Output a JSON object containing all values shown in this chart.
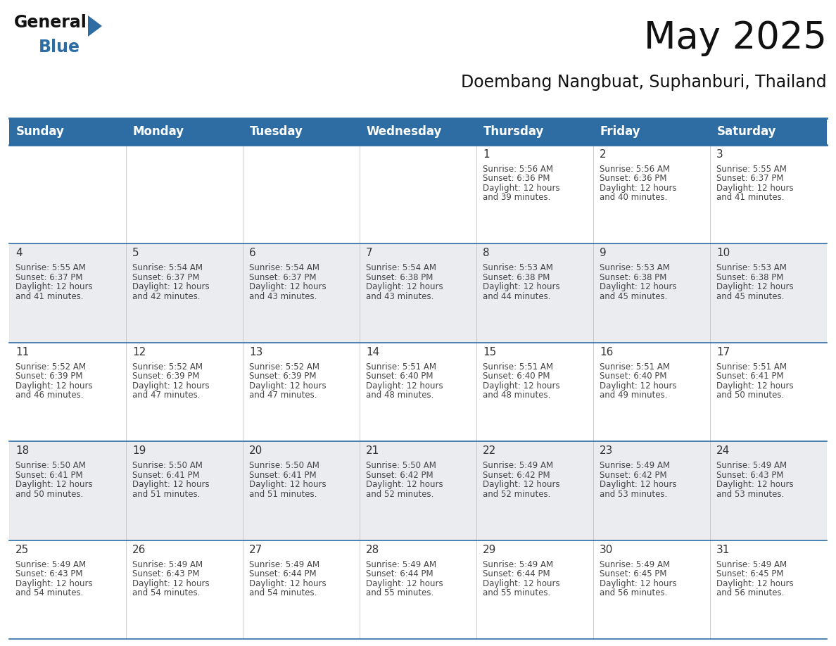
{
  "title": "May 2025",
  "subtitle": "Doembang Nangbuat, Suphanburi, Thailand",
  "header_bg_color": "#2E6DA4",
  "header_text_color": "#FFFFFF",
  "cell_bg_color_white": "#FFFFFF",
  "cell_bg_color_gray": "#EAECF0",
  "day_number_color": "#333333",
  "cell_text_color": "#444444",
  "grid_line_color": "#2E6DA4",
  "vert_line_color": "#BBBBBB",
  "days_of_week": [
    "Sunday",
    "Monday",
    "Tuesday",
    "Wednesday",
    "Thursday",
    "Friday",
    "Saturday"
  ],
  "weeks": [
    [
      {
        "day": "",
        "sunrise": "",
        "sunset": "",
        "daylight": ""
      },
      {
        "day": "",
        "sunrise": "",
        "sunset": "",
        "daylight": ""
      },
      {
        "day": "",
        "sunrise": "",
        "sunset": "",
        "daylight": ""
      },
      {
        "day": "",
        "sunrise": "",
        "sunset": "",
        "daylight": ""
      },
      {
        "day": "1",
        "sunrise": "5:56 AM",
        "sunset": "6:36 PM",
        "daylight": "12 hours and 39 minutes."
      },
      {
        "day": "2",
        "sunrise": "5:56 AM",
        "sunset": "6:36 PM",
        "daylight": "12 hours and 40 minutes."
      },
      {
        "day": "3",
        "sunrise": "5:55 AM",
        "sunset": "6:37 PM",
        "daylight": "12 hours and 41 minutes."
      }
    ],
    [
      {
        "day": "4",
        "sunrise": "5:55 AM",
        "sunset": "6:37 PM",
        "daylight": "12 hours and 41 minutes."
      },
      {
        "day": "5",
        "sunrise": "5:54 AM",
        "sunset": "6:37 PM",
        "daylight": "12 hours and 42 minutes."
      },
      {
        "day": "6",
        "sunrise": "5:54 AM",
        "sunset": "6:37 PM",
        "daylight": "12 hours and 43 minutes."
      },
      {
        "day": "7",
        "sunrise": "5:54 AM",
        "sunset": "6:38 PM",
        "daylight": "12 hours and 43 minutes."
      },
      {
        "day": "8",
        "sunrise": "5:53 AM",
        "sunset": "6:38 PM",
        "daylight": "12 hours and 44 minutes."
      },
      {
        "day": "9",
        "sunrise": "5:53 AM",
        "sunset": "6:38 PM",
        "daylight": "12 hours and 45 minutes."
      },
      {
        "day": "10",
        "sunrise": "5:53 AM",
        "sunset": "6:38 PM",
        "daylight": "12 hours and 45 minutes."
      }
    ],
    [
      {
        "day": "11",
        "sunrise": "5:52 AM",
        "sunset": "6:39 PM",
        "daylight": "12 hours and 46 minutes."
      },
      {
        "day": "12",
        "sunrise": "5:52 AM",
        "sunset": "6:39 PM",
        "daylight": "12 hours and 47 minutes."
      },
      {
        "day": "13",
        "sunrise": "5:52 AM",
        "sunset": "6:39 PM",
        "daylight": "12 hours and 47 minutes."
      },
      {
        "day": "14",
        "sunrise": "5:51 AM",
        "sunset": "6:40 PM",
        "daylight": "12 hours and 48 minutes."
      },
      {
        "day": "15",
        "sunrise": "5:51 AM",
        "sunset": "6:40 PM",
        "daylight": "12 hours and 48 minutes."
      },
      {
        "day": "16",
        "sunrise": "5:51 AM",
        "sunset": "6:40 PM",
        "daylight": "12 hours and 49 minutes."
      },
      {
        "day": "17",
        "sunrise": "5:51 AM",
        "sunset": "6:41 PM",
        "daylight": "12 hours and 50 minutes."
      }
    ],
    [
      {
        "day": "18",
        "sunrise": "5:50 AM",
        "sunset": "6:41 PM",
        "daylight": "12 hours and 50 minutes."
      },
      {
        "day": "19",
        "sunrise": "5:50 AM",
        "sunset": "6:41 PM",
        "daylight": "12 hours and 51 minutes."
      },
      {
        "day": "20",
        "sunrise": "5:50 AM",
        "sunset": "6:41 PM",
        "daylight": "12 hours and 51 minutes."
      },
      {
        "day": "21",
        "sunrise": "5:50 AM",
        "sunset": "6:42 PM",
        "daylight": "12 hours and 52 minutes."
      },
      {
        "day": "22",
        "sunrise": "5:49 AM",
        "sunset": "6:42 PM",
        "daylight": "12 hours and 52 minutes."
      },
      {
        "day": "23",
        "sunrise": "5:49 AM",
        "sunset": "6:42 PM",
        "daylight": "12 hours and 53 minutes."
      },
      {
        "day": "24",
        "sunrise": "5:49 AM",
        "sunset": "6:43 PM",
        "daylight": "12 hours and 53 minutes."
      }
    ],
    [
      {
        "day": "25",
        "sunrise": "5:49 AM",
        "sunset": "6:43 PM",
        "daylight": "12 hours and 54 minutes."
      },
      {
        "day": "26",
        "sunrise": "5:49 AM",
        "sunset": "6:43 PM",
        "daylight": "12 hours and 54 minutes."
      },
      {
        "day": "27",
        "sunrise": "5:49 AM",
        "sunset": "6:44 PM",
        "daylight": "12 hours and 54 minutes."
      },
      {
        "day": "28",
        "sunrise": "5:49 AM",
        "sunset": "6:44 PM",
        "daylight": "12 hours and 55 minutes."
      },
      {
        "day": "29",
        "sunrise": "5:49 AM",
        "sunset": "6:44 PM",
        "daylight": "12 hours and 55 minutes."
      },
      {
        "day": "30",
        "sunrise": "5:49 AM",
        "sunset": "6:45 PM",
        "daylight": "12 hours and 56 minutes."
      },
      {
        "day": "31",
        "sunrise": "5:49 AM",
        "sunset": "6:45 PM",
        "daylight": "12 hours and 56 minutes."
      }
    ]
  ],
  "logo_triangle_color": "#2E6DA4",
  "title_fontsize": 38,
  "subtitle_fontsize": 17,
  "header_fontsize": 12,
  "day_number_fontsize": 11,
  "cell_text_fontsize": 8.5
}
